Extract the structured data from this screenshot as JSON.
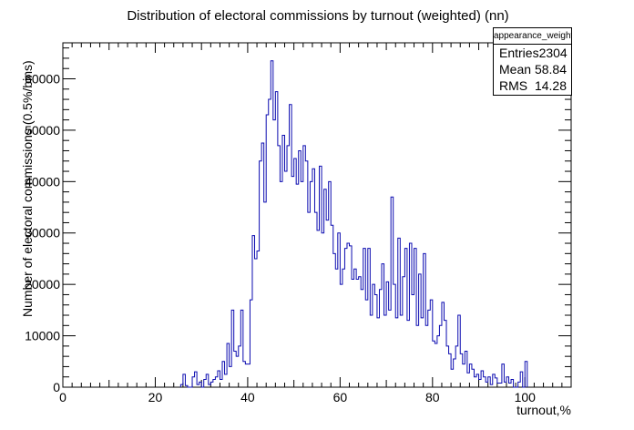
{
  "chart_data": {
    "type": "bar",
    "title": "Distribution of electoral commissions by turnout (weighted) (nn)",
    "xlabel": "turnout,%",
    "ylabel": "Number of electoral commissions (0.5%/bins)",
    "xlim": [
      0,
      110
    ],
    "ylim": [
      0,
      67000
    ],
    "x_ticks": [
      0,
      20,
      40,
      60,
      80,
      100
    ],
    "y_ticks": [
      0,
      10000,
      20000,
      30000,
      40000,
      50000,
      60000
    ],
    "y_tick_labels": [
      "0",
      "10000",
      "20000",
      "30000",
      "40000",
      "50000",
      "60000"
    ],
    "bin_width": 0.5,
    "bins": [
      [
        25.5,
        500
      ],
      [
        26.0,
        2500
      ],
      [
        26.5,
        300
      ],
      [
        27.0,
        0
      ],
      [
        27.5,
        0
      ],
      [
        28.0,
        2000
      ],
      [
        28.5,
        3000
      ],
      [
        29.0,
        500
      ],
      [
        29.5,
        1000
      ],
      [
        30.0,
        0
      ],
      [
        30.5,
        1500
      ],
      [
        31.0,
        2500
      ],
      [
        31.5,
        500
      ],
      [
        32.0,
        1000
      ],
      [
        32.5,
        1500
      ],
      [
        33.0,
        2000
      ],
      [
        33.5,
        3200
      ],
      [
        34.0,
        1500
      ],
      [
        34.5,
        5000
      ],
      [
        35.0,
        2500
      ],
      [
        35.5,
        8500
      ],
      [
        36.0,
        4000
      ],
      [
        36.5,
        15000
      ],
      [
        37.0,
        7000
      ],
      [
        37.5,
        6000
      ],
      [
        38.0,
        8000
      ],
      [
        38.5,
        15000
      ],
      [
        39.0,
        5000
      ],
      [
        39.5,
        4500
      ],
      [
        40.0,
        4500
      ],
      [
        40.5,
        17000
      ],
      [
        41.0,
        29500
      ],
      [
        41.5,
        25000
      ],
      [
        42.0,
        26500
      ],
      [
        42.5,
        44000
      ],
      [
        43.0,
        47500
      ],
      [
        43.5,
        36000
      ],
      [
        44.0,
        53000
      ],
      [
        44.5,
        56000
      ],
      [
        45.0,
        63500
      ],
      [
        45.5,
        52000
      ],
      [
        46.0,
        57500
      ],
      [
        46.5,
        47000
      ],
      [
        47.0,
        40000
      ],
      [
        47.5,
        49000
      ],
      [
        48.0,
        42000
      ],
      [
        48.5,
        47000
      ],
      [
        49.0,
        55000
      ],
      [
        49.5,
        41000
      ],
      [
        50.0,
        44500
      ],
      [
        50.5,
        39500
      ],
      [
        51.0,
        46000
      ],
      [
        51.5,
        40000
      ],
      [
        52.0,
        47000
      ],
      [
        52.5,
        44000
      ],
      [
        53.0,
        34000
      ],
      [
        53.5,
        40000
      ],
      [
        54.0,
        42500
      ],
      [
        54.5,
        34000
      ],
      [
        55.0,
        30500
      ],
      [
        55.5,
        43000
      ],
      [
        56.0,
        30000
      ],
      [
        56.5,
        38500
      ],
      [
        57.0,
        32500
      ],
      [
        57.5,
        40000
      ],
      [
        58.0,
        31500
      ],
      [
        58.5,
        26000
      ],
      [
        59.0,
        23000
      ],
      [
        59.5,
        30000
      ],
      [
        60.0,
        20000
      ],
      [
        60.5,
        23000
      ],
      [
        61.0,
        27000
      ],
      [
        61.5,
        28000
      ],
      [
        62.0,
        27500
      ],
      [
        62.5,
        21000
      ],
      [
        63.0,
        23000
      ],
      [
        63.5,
        21000
      ],
      [
        64.0,
        21500
      ],
      [
        64.5,
        19000
      ],
      [
        65.0,
        27000
      ],
      [
        65.5,
        17000
      ],
      [
        66.0,
        27000
      ],
      [
        66.5,
        14000
      ],
      [
        67.0,
        20000
      ],
      [
        67.5,
        18000
      ],
      [
        68.0,
        13500
      ],
      [
        68.5,
        19000
      ],
      [
        69.0,
        24000
      ],
      [
        69.5,
        14000
      ],
      [
        70.0,
        20500
      ],
      [
        70.5,
        15000
      ],
      [
        71.0,
        37000
      ],
      [
        71.5,
        20000
      ],
      [
        72.0,
        13500
      ],
      [
        72.5,
        29000
      ],
      [
        73.0,
        14000
      ],
      [
        73.5,
        21500
      ],
      [
        74.0,
        27000
      ],
      [
        74.5,
        13000
      ],
      [
        75.0,
        28000
      ],
      [
        75.5,
        18000
      ],
      [
        76.0,
        27000
      ],
      [
        76.5,
        12000
      ],
      [
        77.0,
        22000
      ],
      [
        77.5,
        13500
      ],
      [
        78.0,
        26000
      ],
      [
        78.5,
        12000
      ],
      [
        79.0,
        15000
      ],
      [
        79.5,
        17000
      ],
      [
        80.0,
        9000
      ],
      [
        80.5,
        8500
      ],
      [
        81.0,
        10000
      ],
      [
        81.5,
        12000
      ],
      [
        82.0,
        16500
      ],
      [
        82.5,
        13000
      ],
      [
        83.0,
        8000
      ],
      [
        83.5,
        6500
      ],
      [
        84.0,
        3500
      ],
      [
        84.5,
        5500
      ],
      [
        85.0,
        8000
      ],
      [
        85.5,
        14000
      ],
      [
        86.0,
        6500
      ],
      [
        86.5,
        4500
      ],
      [
        87.0,
        7000
      ],
      [
        87.5,
        2800
      ],
      [
        88.0,
        4500
      ],
      [
        88.5,
        3500
      ],
      [
        89.0,
        2000
      ],
      [
        89.5,
        2500
      ],
      [
        90.0,
        1500
      ],
      [
        90.5,
        3200
      ],
      [
        91.0,
        2000
      ],
      [
        91.5,
        1000
      ],
      [
        92.0,
        2000
      ],
      [
        92.5,
        500
      ],
      [
        93.0,
        2500
      ],
      [
        93.5,
        1800
      ],
      [
        94.0,
        800
      ],
      [
        94.5,
        800
      ],
      [
        95.0,
        4500
      ],
      [
        95.5,
        1000
      ],
      [
        96.0,
        2000
      ],
      [
        96.5,
        800
      ],
      [
        97.0,
        1500
      ],
      [
        97.5,
        0
      ],
      [
        98.0,
        0
      ],
      [
        98.5,
        1000
      ],
      [
        99.0,
        3000
      ],
      [
        99.5,
        0
      ],
      [
        100.0,
        5000
      ]
    ],
    "legend": "top-right"
  },
  "stats": {
    "name": "appearance_weighted_hist",
    "rows": [
      {
        "label": "Entries",
        "value": "2304"
      },
      {
        "label": "Mean",
        "value": "58.84"
      },
      {
        "label": "RMS",
        "value": "14.28"
      }
    ]
  },
  "colors": {
    "line": "#0b0bb0",
    "axis": "#000000",
    "background": "#ffffff"
  }
}
